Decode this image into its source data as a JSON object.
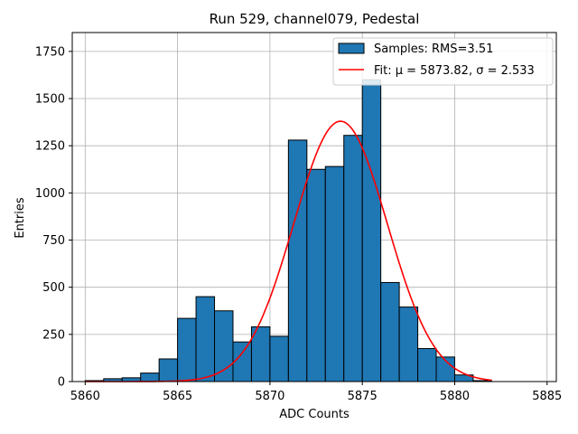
{
  "chart_data": {
    "type": "bar",
    "title": "Run 529, channel079, Pedestal",
    "xlabel": "ADC Counts",
    "ylabel": "Entries",
    "xlim": [
      5859.3,
      5885.5
    ],
    "ylim": [
      0,
      1850
    ],
    "xticks": [
      5860,
      5865,
      5870,
      5875,
      5880,
      5885
    ],
    "yticks": [
      0,
      250,
      500,
      750,
      1000,
      1250,
      1500,
      1750
    ],
    "grid": true,
    "legend_position": "top-right",
    "colors": {
      "bars": "#1f77b4",
      "bar_edge": "#000000",
      "fit": "#ff0000",
      "grid": "#b0b0b0"
    },
    "series": [
      {
        "name": "Samples: RMS=3.51",
        "kind": "histogram",
        "bin_width": 1,
        "bins": [
          {
            "x0": 5860,
            "y": 5
          },
          {
            "x0": 5861,
            "y": 15
          },
          {
            "x0": 5862,
            "y": 20
          },
          {
            "x0": 5863,
            "y": 45
          },
          {
            "x0": 5864,
            "y": 120
          },
          {
            "x0": 5865,
            "y": 335
          },
          {
            "x0": 5866,
            "y": 450
          },
          {
            "x0": 5867,
            "y": 375
          },
          {
            "x0": 5868,
            "y": 210
          },
          {
            "x0": 5869,
            "y": 290
          },
          {
            "x0": 5870,
            "y": 240
          },
          {
            "x0": 5871,
            "y": 1280
          },
          {
            "x0": 5872,
            "y": 1125
          },
          {
            "x0": 5873,
            "y": 1140
          },
          {
            "x0": 5874,
            "y": 1305
          },
          {
            "x0": 5875,
            "y": 1600
          },
          {
            "x0": 5876,
            "y": 525
          },
          {
            "x0": 5877,
            "y": 395
          },
          {
            "x0": 5878,
            "y": 175
          },
          {
            "x0": 5879,
            "y": 130
          },
          {
            "x0": 5880,
            "y": 35
          },
          {
            "x0": 5881,
            "y": 5
          }
        ]
      },
      {
        "name": "Fit: μ = 5873.82, σ = 2.533",
        "kind": "gaussian",
        "mu": 5873.82,
        "sigma": 2.533,
        "amplitude": 1380,
        "x_range": [
          5860,
          5882
        ]
      }
    ]
  }
}
